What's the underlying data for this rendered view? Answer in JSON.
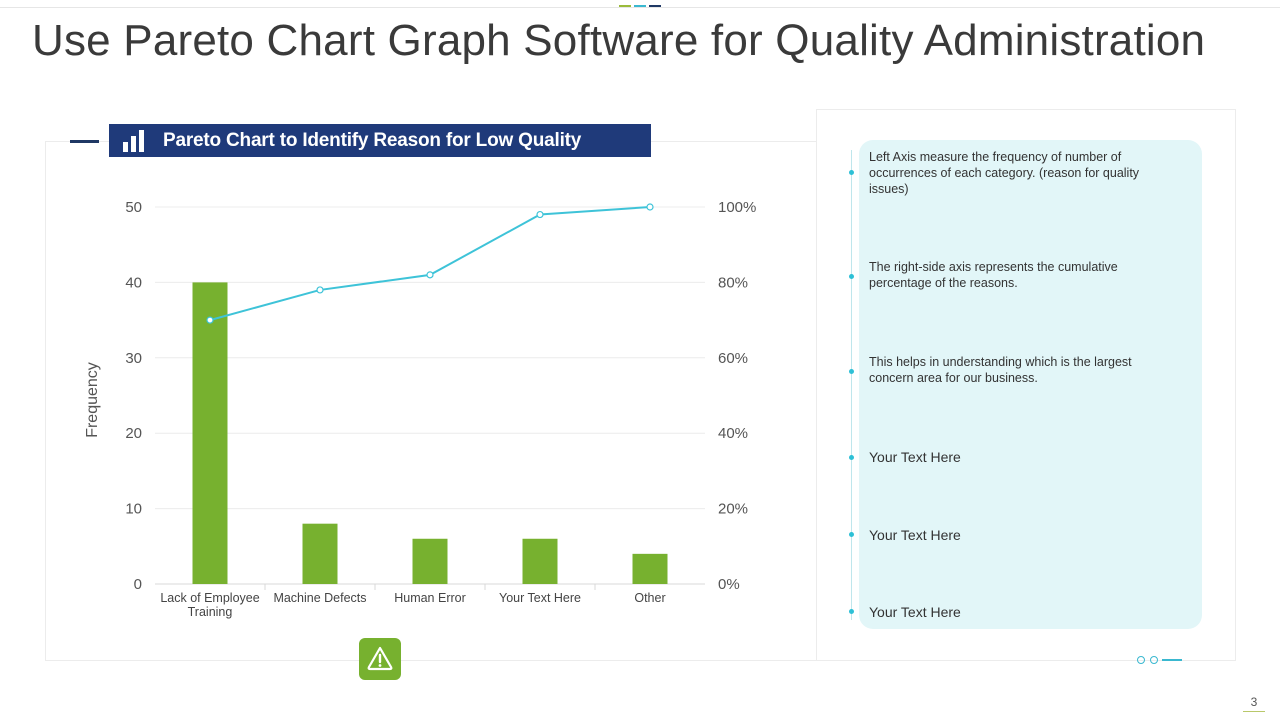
{
  "slide": {
    "title": "Use Pareto Chart Graph Software for Quality Administration",
    "page_number": "3"
  },
  "banner": {
    "title": "Pareto Chart to Identify Reason for Low Quality",
    "icon": "bar-chart-icon"
  },
  "colors": {
    "bar": "#77b12f",
    "line": "#3ec3d8",
    "banner": "#1f3a7a",
    "panel": "#e2f6f8",
    "accent": "#3ab8d0"
  },
  "chart_data": {
    "type": "bar",
    "title": "Pareto Chart to Identify Reason for Low Quality",
    "categories": [
      "Lack of Employee Training",
      "Machine Defects",
      "Human Error",
      "Your Text Here",
      "Other"
    ],
    "series": [
      {
        "name": "Frequency",
        "type": "bar",
        "axis": "left",
        "values": [
          40,
          8,
          6,
          6,
          4
        ]
      },
      {
        "name": "Cumulative %",
        "type": "line",
        "axis": "right",
        "values": [
          70,
          78,
          82,
          98,
          100
        ]
      }
    ],
    "xlabel": "",
    "ylabel": "Frequency",
    "ylim": [
      0,
      50
    ],
    "y_ticks": [
      0,
      10,
      20,
      30,
      40,
      50
    ],
    "y2lim": [
      0,
      100
    ],
    "y2_ticks": [
      "0%",
      "20%",
      "40%",
      "60%",
      "80%",
      "100%"
    ],
    "grid": true
  },
  "notes": [
    "Left Axis measure the frequency  of number  of occurrences of each category. (reason for quality issues)",
    "The right-side  axis represents the cumulative percentage  of the reasons.",
    "This helps in understanding  which is the largest concern area for our business.",
    "Your Text Here",
    "Your Text Here",
    "Your Text Here"
  ],
  "alert_icon": "warning-icon"
}
